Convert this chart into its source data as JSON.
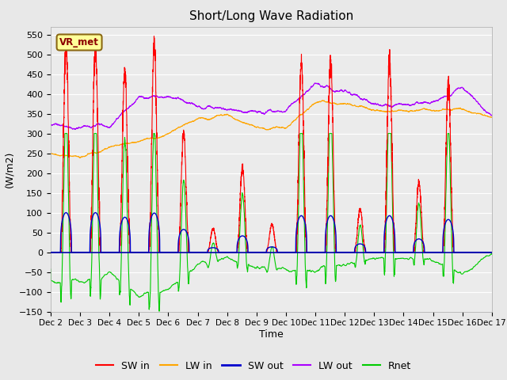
{
  "title": "Short/Long Wave Radiation",
  "xlabel": "Time",
  "ylabel": "(W/m2)",
  "ylim": [
    -150,
    570
  ],
  "yticks": [
    -150,
    -100,
    -50,
    0,
    50,
    100,
    150,
    200,
    250,
    300,
    350,
    400,
    450,
    500,
    550
  ],
  "xlim": [
    0,
    15
  ],
  "xtick_labels": [
    "Dec 2",
    "Dec 3",
    "Dec 4",
    "Dec 5",
    "Dec 6",
    "Dec 7",
    "Dec 8",
    "Dec 9",
    "Dec 10",
    "Dec 11",
    "Dec 12",
    "Dec 13",
    "Dec 14",
    "Dec 15",
    "Dec 16",
    "Dec 17"
  ],
  "legend_labels": [
    "SW in",
    "LW in",
    "SW out",
    "LW out",
    "Rnet"
  ],
  "legend_colors": [
    "#ff0000",
    "#ffa500",
    "#0000cd",
    "#aa00ff",
    "#00cc00"
  ],
  "annotation_text": "VR_met",
  "annotation_color": "#8b0000",
  "annotation_bg": "#ffff99",
  "bg_color": "#e8e8e8",
  "plot_bg": "#ebebeb",
  "grid_color": "#ffffff",
  "SW_in_color": "#ff0000",
  "LW_in_color": "#ffa500",
  "SW_out_color": "#0000cd",
  "LW_out_color": "#aa00ff",
  "Rnet_color": "#00cc00",
  "zero_line_color": "#0000aa",
  "figsize": [
    6.4,
    4.8
  ],
  "dpi": 100
}
